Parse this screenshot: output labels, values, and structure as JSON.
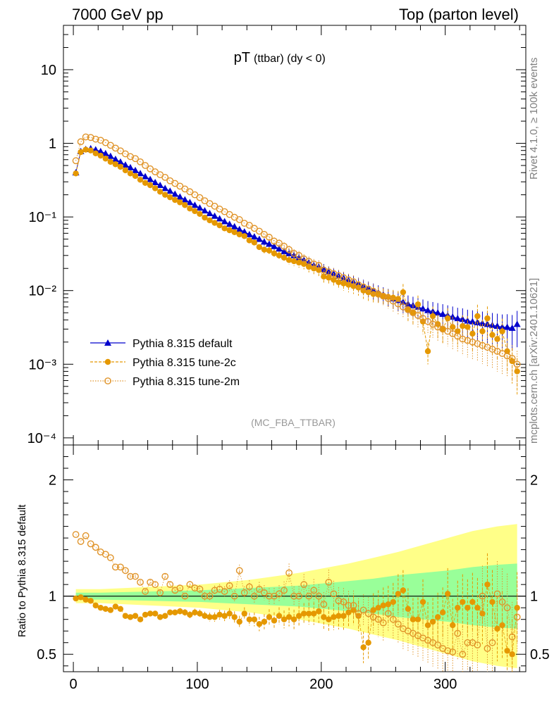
{
  "header": {
    "left": "7000 GeV pp",
    "right": "Top (parton level)"
  },
  "side_labels": {
    "rivet": "Rivet 4.1.0, ≥ 100k events",
    "mcplots": "mcplots.cern.ch [arXiv:2401.10621]"
  },
  "colors": {
    "default": "#0000cc",
    "tune2c": "#e59800",
    "tune2m": "#e0942a",
    "band_green": "#99ff99",
    "band_yellow": "#ffff88"
  },
  "chart_data": [
    {
      "type": "scatter",
      "panel": "main",
      "title_main": "pT",
      "title_sub": "(ttbar) (dy < 0)",
      "analysis_label": "(MC_FBA_TTBAR)",
      "xlabel": "",
      "ylabel": "",
      "yscale": "log",
      "xlim": [
        -8,
        365
      ],
      "ylim": [
        8e-05,
        40
      ],
      "y_tick_labels": [
        "10⁻⁴",
        "10⁻³",
        "10⁻²",
        "10⁻¹",
        "1",
        "10"
      ],
      "legend": [
        "Pythia 8.315 default",
        "Pythia 8.315 tune-2c",
        "Pythia 8.315 tune-2m"
      ],
      "legend_position": "bottom-left",
      "series": [
        {
          "name": "Pythia 8.315 default",
          "marker": "triangle-up",
          "x": [
            2,
            6,
            10,
            14,
            18,
            22,
            26,
            30,
            34,
            38,
            42,
            46,
            50,
            54,
            58,
            62,
            66,
            70,
            74,
            78,
            82,
            86,
            90,
            94,
            98,
            102,
            106,
            110,
            114,
            118,
            122,
            126,
            130,
            134,
            138,
            142,
            146,
            150,
            154,
            158,
            162,
            166,
            170,
            174,
            178,
            182,
            186,
            190,
            194,
            198,
            202,
            206,
            210,
            214,
            218,
            222,
            226,
            230,
            234,
            238,
            242,
            246,
            250,
            254,
            258,
            262,
            266,
            270,
            274,
            278,
            282,
            286,
            290,
            294,
            298,
            302,
            306,
            310,
            314,
            318,
            322,
            326,
            330,
            334,
            338,
            342,
            346,
            350,
            354,
            358
          ],
          "values": [
            0.4,
            0.78,
            0.83,
            0.85,
            0.82,
            0.78,
            0.73,
            0.67,
            0.61,
            0.56,
            0.51,
            0.47,
            0.43,
            0.39,
            0.355,
            0.325,
            0.295,
            0.27,
            0.245,
            0.225,
            0.205,
            0.188,
            0.172,
            0.158,
            0.145,
            0.133,
            0.122,
            0.112,
            0.103,
            0.095,
            0.087,
            0.08,
            0.074,
            0.068,
            0.063,
            0.058,
            0.054,
            0.05,
            0.046,
            0.043,
            0.04,
            0.037,
            0.034,
            0.032,
            0.03,
            0.028,
            0.026,
            0.024,
            0.022,
            0.021,
            0.0195,
            0.018,
            0.017,
            0.0158,
            0.0148,
            0.0138,
            0.013,
            0.0122,
            0.0114,
            0.0107,
            0.01,
            0.0094,
            0.0088,
            0.0083,
            0.0078,
            0.0074,
            0.007,
            0.0066,
            0.0063,
            0.006,
            0.0057,
            0.0054,
            0.0052,
            0.005,
            0.0048,
            0.0046,
            0.0044,
            0.0042,
            0.0041,
            0.0039,
            0.0038,
            0.0037,
            0.0036,
            0.0035,
            0.0034,
            0.0033,
            0.0032,
            0.0032,
            0.0031,
            0.0035
          ]
        },
        {
          "name": "Pythia 8.315 tune-2c",
          "marker": "circle-filled",
          "x": [
            2,
            6,
            10,
            14,
            18,
            22,
            26,
            30,
            34,
            38,
            42,
            46,
            50,
            54,
            58,
            62,
            66,
            70,
            74,
            78,
            82,
            86,
            90,
            94,
            98,
            102,
            106,
            110,
            114,
            118,
            122,
            126,
            130,
            134,
            138,
            142,
            146,
            150,
            154,
            158,
            162,
            166,
            170,
            174,
            178,
            182,
            186,
            190,
            194,
            198,
            202,
            206,
            210,
            214,
            218,
            222,
            226,
            230,
            234,
            238,
            242,
            246,
            250,
            254,
            258,
            262,
            266,
            270,
            274,
            278,
            282,
            286,
            290,
            294,
            298,
            302,
            306,
            310,
            314,
            318,
            322,
            326,
            330,
            334,
            338,
            342,
            346,
            350,
            354,
            358
          ],
          "values": [
            0.39,
            0.76,
            0.82,
            0.8,
            0.73,
            0.68,
            0.62,
            0.56,
            0.52,
            0.48,
            0.43,
            0.39,
            0.36,
            0.32,
            0.29,
            0.27,
            0.245,
            0.22,
            0.2,
            0.185,
            0.17,
            0.158,
            0.145,
            0.13,
            0.12,
            0.11,
            0.098,
            0.09,
            0.083,
            0.077,
            0.07,
            0.066,
            0.062,
            0.058,
            0.055,
            0.048,
            0.045,
            0.039,
            0.036,
            0.035,
            0.032,
            0.03,
            0.028,
            0.026,
            0.025,
            0.024,
            0.023,
            0.021,
            0.02,
            0.019,
            0.0155,
            0.015,
            0.014,
            0.013,
            0.0125,
            0.012,
            0.0115,
            0.011,
            0.01,
            0.0095,
            0.009,
            0.0088,
            0.0085,
            0.0082,
            0.008,
            0.0077,
            0.0095,
            0.0055,
            0.005,
            0.0065,
            0.0038,
            0.0015,
            0.0045,
            0.0035,
            0.003,
            0.0042,
            0.0032,
            0.0028,
            0.0033,
            0.0032,
            0.0026,
            0.0045,
            0.0028,
            0.0042,
            0.0025,
            0.0022,
            0.0028,
            0.0015,
            0.0011,
            0.0008
          ]
        },
        {
          "name": "Pythia 8.315 tune-2m",
          "marker": "circle-open",
          "x": [
            2,
            6,
            10,
            14,
            18,
            22,
            26,
            30,
            34,
            38,
            42,
            46,
            50,
            54,
            58,
            62,
            66,
            70,
            74,
            78,
            82,
            86,
            90,
            94,
            98,
            102,
            106,
            110,
            114,
            118,
            122,
            126,
            130,
            134,
            138,
            142,
            146,
            150,
            154,
            158,
            162,
            166,
            170,
            174,
            178,
            182,
            186,
            190,
            194,
            198,
            202,
            206,
            210,
            214,
            218,
            222,
            226,
            230,
            234,
            238,
            242,
            246,
            250,
            254,
            258,
            262,
            266,
            270,
            274,
            278,
            282,
            286,
            290,
            294,
            298,
            302,
            306,
            310,
            314,
            318,
            322,
            326,
            330,
            334,
            338,
            342,
            346,
            350,
            354,
            358
          ],
          "values": [
            0.58,
            1.05,
            1.22,
            1.2,
            1.14,
            1.1,
            1.02,
            0.94,
            0.86,
            0.79,
            0.72,
            0.66,
            0.62,
            0.56,
            0.5,
            0.45,
            0.41,
            0.375,
            0.345,
            0.31,
            0.285,
            0.262,
            0.24,
            0.22,
            0.2,
            0.183,
            0.166,
            0.152,
            0.14,
            0.128,
            0.118,
            0.108,
            0.099,
            0.092,
            0.082,
            0.077,
            0.07,
            0.064,
            0.058,
            0.053,
            0.047,
            0.044,
            0.04,
            0.036,
            0.032,
            0.03,
            0.027,
            0.025,
            0.023,
            0.022,
            0.019,
            0.018,
            0.017,
            0.016,
            0.015,
            0.014,
            0.0132,
            0.012,
            0.0112,
            0.0105,
            0.0098,
            0.009,
            0.0084,
            0.0078,
            0.0072,
            0.0066,
            0.006,
            0.0055,
            0.005,
            0.0046,
            0.0042,
            0.0038,
            0.0035,
            0.0032,
            0.003,
            0.0028,
            0.0026,
            0.0024,
            0.0022,
            0.0021,
            0.002,
            0.0019,
            0.0018,
            0.0017,
            0.0016,
            0.0015,
            0.0014,
            0.0013,
            0.0012,
            0.001
          ]
        }
      ]
    },
    {
      "type": "scatter",
      "panel": "ratio",
      "ylabel": "Ratio to Pythia 8.315 default",
      "xlabel": "",
      "yscale": "linear",
      "xlim": [
        -8,
        365
      ],
      "ylim": [
        0.35,
        2.3
      ],
      "x_ticks": [
        0,
        100,
        200,
        300
      ],
      "y_ticks": [
        0.5,
        1,
        2
      ],
      "reference_line": 1,
      "bands": {
        "x": [
          2,
          22,
          42,
          62,
          82,
          102,
          122,
          142,
          162,
          182,
          202,
          222,
          242,
          262,
          282,
          302,
          322,
          342,
          358
        ],
        "green_halfwidth": [
          0.03,
          0.03,
          0.035,
          0.04,
          0.045,
          0.05,
          0.06,
          0.07,
          0.08,
          0.09,
          0.11,
          0.13,
          0.15,
          0.18,
          0.2,
          0.22,
          0.25,
          0.27,
          0.28
        ],
        "yellow_halfwidth": [
          0.06,
          0.06,
          0.07,
          0.08,
          0.09,
          0.1,
          0.12,
          0.14,
          0.17,
          0.2,
          0.24,
          0.28,
          0.33,
          0.38,
          0.44,
          0.5,
          0.56,
          0.6,
          0.62
        ]
      },
      "series": [
        {
          "name": "Pythia 8.315 tune-2c",
          "marker": "circle-filled",
          "values": [
            0.98,
            0.99,
            0.97,
            0.96,
            0.92,
            0.9,
            0.89,
            0.88,
            0.91,
            0.89,
            0.83,
            0.82,
            0.83,
            0.8,
            0.84,
            0.85,
            0.85,
            0.82,
            0.83,
            0.86,
            0.86,
            0.87,
            0.86,
            0.84,
            0.86,
            0.85,
            0.83,
            0.82,
            0.82,
            0.84,
            0.83,
            0.85,
            0.82,
            0.78,
            0.85,
            0.8,
            0.8,
            0.76,
            0.78,
            0.82,
            0.79,
            0.83,
            0.8,
            0.82,
            0.8,
            0.83,
            0.85,
            0.85,
            0.85,
            0.87,
            0.82,
            0.8,
            0.82,
            0.83,
            0.83,
            0.86,
            0.88,
            0.83,
            0.56,
            0.6,
            0.88,
            0.9,
            0.92,
            0.93,
            0.95,
            1.02,
            1.05,
            0.89,
            0.8,
            0.8,
            0.95,
            0.75,
            0.78,
            0.82,
            0.86,
            1.02,
            0.75,
            0.9,
            0.95,
            0.9,
            0.95,
            0.9,
            0.85,
            1.1,
            0.95,
            0.72,
            0.75,
            0.53,
            0.5,
            0.9
          ]
        },
        {
          "name": "Pythia 8.315 tune-2m",
          "marker": "circle-open",
          "values": [
            1.53,
            1.47,
            1.52,
            1.45,
            1.42,
            1.38,
            1.36,
            1.33,
            1.25,
            1.25,
            1.22,
            1.17,
            1.17,
            1.12,
            1.04,
            1.12,
            1.1,
            1.03,
            1.17,
            1.1,
            1.05,
            1.07,
            1.0,
            1.1,
            1.07,
            1.06,
            1.0,
            1.0,
            1.05,
            1.06,
            1.04,
            1.09,
            1.0,
            1.22,
            1.03,
            1.08,
            1.0,
            1.06,
            1.03,
            1.0,
            1.0,
            1.02,
            1.05,
            1.2,
            1.0,
            1.0,
            1.1,
            1.0,
            1.05,
            1.0,
            0.93,
            1.12,
            1.02,
            0.96,
            0.95,
            0.92,
            0.92,
            0.85,
            0.88,
            0.85,
            0.82,
            0.8,
            0.77,
            0.85,
            0.8,
            0.76,
            0.72,
            0.7,
            0.68,
            0.66,
            0.64,
            0.62,
            0.6,
            0.58,
            0.55,
            0.53,
            0.52,
            0.68,
            0.5,
            0.6,
            0.6,
            0.58,
            1.0,
            0.55,
            0.6,
            1.02,
            0.95,
            0.9,
            0.65,
            0.82
          ]
        }
      ]
    }
  ]
}
